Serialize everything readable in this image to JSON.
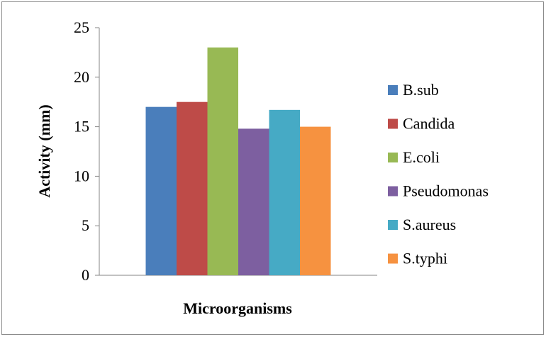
{
  "chart_data": {
    "type": "bar",
    "categories": [
      ""
    ],
    "series": [
      {
        "name": "B.sub",
        "values": [
          17
        ],
        "color": "#4a7ebb"
      },
      {
        "name": "Candida",
        "values": [
          17.5
        ],
        "color": "#be4b48"
      },
      {
        "name": "E.coli",
        "values": [
          23
        ],
        "color": "#98b954"
      },
      {
        "name": "Pseudomonas",
        "values": [
          14.8
        ],
        "color": "#7d5fa0"
      },
      {
        "name": "S.aureus",
        "values": [
          16.7
        ],
        "color": "#46aac5"
      },
      {
        "name": "S.typhi",
        "values": [
          15
        ],
        "color": "#f69240"
      }
    ],
    "title": "",
    "xlabel": "Microorganisms",
    "ylabel": "Activity (mm)",
    "ylim": [
      0,
      25
    ],
    "yticks": [
      "0",
      "5",
      "10",
      "15",
      "20",
      "25"
    ],
    "grid": false,
    "legend": "right"
  }
}
